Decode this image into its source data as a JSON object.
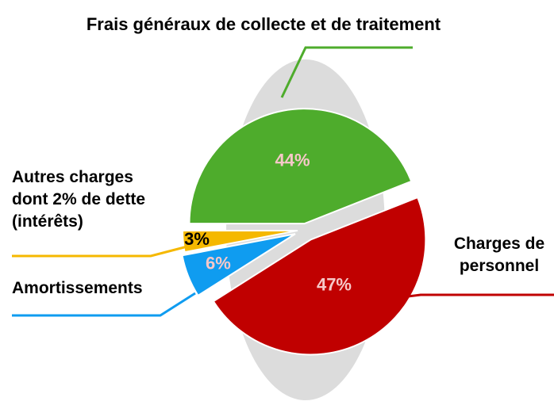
{
  "chart_data": {
    "type": "pie",
    "title": "Frais généraux de collecte et de traitement",
    "categories": [
      "Frais généraux de collecte et de traitement",
      "Charges de personnel",
      "Amortissements",
      "Autres charges dont 2% de dette (intérêts)"
    ],
    "values": [
      44,
      47,
      6,
      3
    ],
    "value_labels": [
      "44%",
      "47%",
      "6%",
      "3%"
    ],
    "colors": [
      "#4eac2c",
      "#c00000",
      "#0f9cf0",
      "#f5b800"
    ]
  }
}
